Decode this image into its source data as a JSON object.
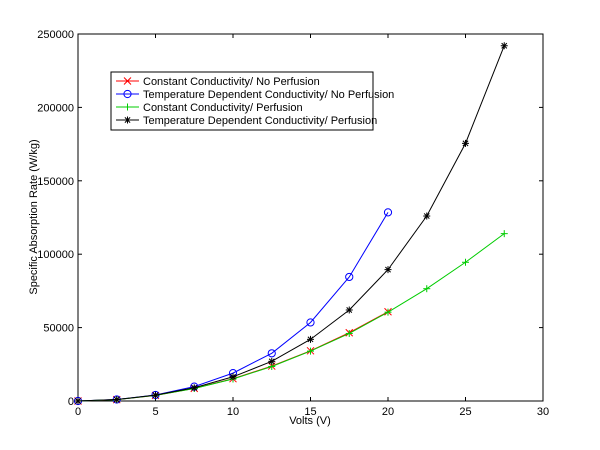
{
  "chart_data": {
    "type": "line",
    "xlabel": "Volts (V)",
    "ylabel": "Specific Absorption Rate (W/kg)",
    "xlim": [
      0,
      30
    ],
    "ylim": [
      0,
      250000
    ],
    "xticks": [
      "0",
      "5",
      "10",
      "15",
      "20",
      "25",
      "30"
    ],
    "yticks": [
      "0",
      "50000",
      "100000",
      "150000",
      "200000",
      "250000"
    ],
    "grid": false,
    "legend_position": "top-left",
    "series": [
      {
        "name": "Constant Conductivity/ No Perfusion",
        "color": "#ff0000",
        "marker": "x",
        "x": [
          0,
          2.5,
          5,
          7.5,
          10,
          12.5,
          15,
          17.5,
          20
        ],
        "y": [
          0,
          950,
          3800,
          8600,
          15200,
          23800,
          34200,
          46500,
          60800
        ]
      },
      {
        "name": "Temperature Dependent Conductivity/ No Perfusion",
        "color": "#0000ff",
        "marker": "o",
        "x": [
          0,
          2.5,
          5,
          7.5,
          10,
          12.5,
          15,
          17.5,
          20
        ],
        "y": [
          0,
          1000,
          4100,
          9800,
          19000,
          32500,
          53500,
          84500,
          128500
        ]
      },
      {
        "name": "Constant Conductivity/ Perfusion",
        "color": "#00cc00",
        "marker": "+",
        "x": [
          0,
          2.5,
          5,
          7.5,
          10,
          12.5,
          15,
          17.5,
          20,
          22.5,
          25,
          27.5
        ],
        "y": [
          0,
          950,
          3800,
          8500,
          15000,
          23500,
          34000,
          46000,
          60500,
          76500,
          94500,
          114000
        ]
      },
      {
        "name": "Temperature Dependent Conductivity/ Perfusion",
        "color": "#000000",
        "marker": "*",
        "x": [
          0,
          2.5,
          5,
          7.5,
          10,
          12.5,
          15,
          17.5,
          20,
          22.5,
          25,
          27.5
        ],
        "y": [
          0,
          1000,
          4000,
          9000,
          16500,
          27000,
          42000,
          62000,
          89500,
          126000,
          175500,
          242000
        ]
      }
    ]
  }
}
